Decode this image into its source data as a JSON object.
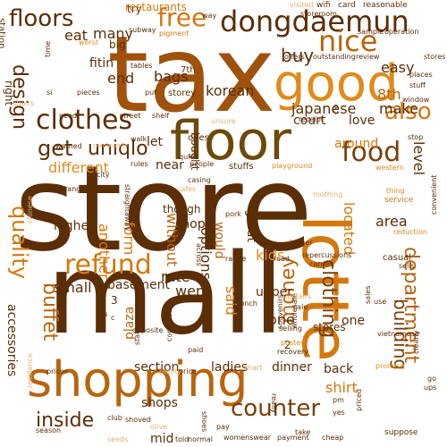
{
  "title": "Word cloud",
  "palette": [
    "#5c2e06",
    "#7a3f08",
    "#8b4a0a",
    "#a0520c",
    "#b8650e",
    "#d4780e",
    "#e08a1a",
    "#c8a060",
    "#e0b070",
    "#f0c890"
  ],
  "words": [
    {
      "text": "store",
      "color": "#5c2e06"
    },
    {
      "text": "mall",
      "color": "#5c2e06"
    },
    {
      "text": "tax",
      "color": "#a0520c"
    },
    {
      "text": "shopping",
      "color": "#b8650e"
    },
    {
      "text": "lotte",
      "color": "#d4780e"
    },
    {
      "text": "floor",
      "color": "#6b4a0a"
    },
    {
      "text": "good",
      "color": "#e08a1a"
    },
    {
      "text": "dongdaemun",
      "color": "#5c2e06"
    },
    {
      "text": "free",
      "color": "#d4780e"
    },
    {
      "text": "clothes",
      "color": "#5c2e06"
    },
    {
      "text": "nice",
      "color": "#b8650e"
    },
    {
      "text": "food",
      "color": "#7a3f08"
    },
    {
      "text": "refund",
      "color": "#d4780e"
    },
    {
      "text": "department",
      "color": "#b8650e"
    },
    {
      "text": "floors",
      "color": "#5c2e06"
    },
    {
      "text": "design",
      "color": "#5c2e06"
    },
    {
      "text": "quality",
      "color": "#d4780e"
    },
    {
      "text": "get",
      "color": "#5c2e06"
    },
    {
      "text": "uniqlo",
      "color": "#5c2e06"
    },
    {
      "text": "also",
      "color": "#d4780e"
    },
    {
      "text": "buffet",
      "color": "#b8650e"
    },
    {
      "text": "money",
      "color": "#b8650e"
    },
    {
      "text": "clothing",
      "color": "#7a3f08"
    },
    {
      "text": "counter",
      "color": "#7a3f08"
    },
    {
      "text": "inside",
      "color": "#5c2e06"
    },
    {
      "text": "building",
      "color": "#7a3f08"
    },
    {
      "text": "buy",
      "color": "#5c2e06"
    },
    {
      "text": "eat",
      "color": "#5c2e06"
    },
    {
      "text": "many",
      "color": "#5c2e06"
    },
    {
      "text": "korean",
      "color": "#5c2e06"
    },
    {
      "text": "japanese",
      "color": "#5c2e06"
    },
    {
      "text": "different",
      "color": "#e08a1a"
    },
    {
      "text": "another",
      "color": "#d4780e"
    },
    {
      "text": "form",
      "color": "#d4780e"
    },
    {
      "text": "without",
      "color": "#b8650e"
    },
    {
      "text": "options",
      "color": "#5c2e06"
    },
    {
      "text": "shop",
      "color": "#5c2e06"
    },
    {
      "text": "kids",
      "color": "#e08a1a"
    },
    {
      "text": "rate",
      "color": "#5c2e06"
    },
    {
      "text": "went",
      "color": "#5c2e06"
    },
    {
      "text": "said",
      "color": "#d4780e"
    },
    {
      "text": "one",
      "color": "#5c2e06"
    },
    {
      "text": "small",
      "color": "#5c2e06"
    },
    {
      "text": "basement",
      "color": "#5c2e06"
    },
    {
      "text": "section",
      "color": "#5c2e06"
    },
    {
      "text": "ladies",
      "color": "#5c2e06"
    },
    {
      "text": "dinner",
      "color": "#5c2e06"
    },
    {
      "text": "back",
      "color": "#5c2e06"
    },
    {
      "text": "shirt",
      "color": "#d4780e"
    },
    {
      "text": "shops",
      "color": "#5c2e06"
    },
    {
      "text": "mid",
      "color": "#5c2e06"
    },
    {
      "text": "accessories",
      "color": "#5c2e06"
    },
    {
      "text": "plaza",
      "color": "#b8650e"
    },
    {
      "text": "level",
      "color": "#5c2e06"
    },
    {
      "text": "area",
      "color": "#5c2e06"
    },
    {
      "text": "located",
      "color": "#d4780e"
    },
    {
      "text": "make",
      "color": "#5c2e06"
    },
    {
      "text": "8th",
      "color": "#b8650e"
    },
    {
      "text": "easy",
      "color": "#5c2e06"
    },
    {
      "text": "bags",
      "color": "#5c2e06"
    },
    {
      "text": "end",
      "color": "#5c2e06"
    },
    {
      "text": "fitin",
      "color": "#5c2e06"
    },
    {
      "text": "big",
      "color": "#5c2e06"
    },
    {
      "text": "try",
      "color": "#5c2e06"
    },
    {
      "text": "restaurants",
      "color": "#d4780e"
    },
    {
      "text": "station",
      "color": "#5c2e06"
    },
    {
      "text": "right",
      "color": "#5c2e06"
    },
    {
      "text": "let",
      "color": "#5c2e06"
    },
    {
      "text": "near",
      "color": "#5c2e06"
    },
    {
      "text": "great",
      "color": "#5c2e06"
    },
    {
      "text": "would",
      "color": "#b8650e"
    },
    {
      "text": "upper",
      "color": "#5c2e06"
    },
    {
      "text": "love",
      "color": "#5c2e06"
    },
    {
      "text": "around",
      "color": "#d4780e"
    },
    {
      "text": "court",
      "color": "#5c2e06"
    },
    {
      "text": "higher",
      "color": "#5c2e06"
    },
    {
      "text": "though",
      "color": "#5c2e06"
    },
    {
      "text": "bought",
      "color": "#5c2e06"
    },
    {
      "text": "ones",
      "color": "#5c2e06"
    },
    {
      "text": "stuffs",
      "color": "#5c2e06"
    },
    {
      "text": "storey",
      "color": "#5c2e06"
    },
    {
      "text": "7th",
      "color": "#5c2e06"
    },
    {
      "text": "stores",
      "color": "#5c2e06"
    },
    {
      "text": "one",
      "color": "#5c2e06"
    },
    {
      "text": "2",
      "color": "#5c2e06"
    },
    {
      "text": "3",
      "color": "#5c2e06"
    },
    {
      "text": "way",
      "color": "#5c2e06"
    },
    {
      "text": "wifi",
      "color": "#5c2e06"
    },
    {
      "text": "card",
      "color": "#5c2e06"
    },
    {
      "text": "reasonable",
      "color": "#5c2e06"
    },
    {
      "text": "visited",
      "color": "#e0b070"
    },
    {
      "text": "subway",
      "color": "#5c2e06"
    },
    {
      "text": "pigment",
      "color": "#d4780e"
    },
    {
      "text": "worst",
      "color": "#e08a1a"
    },
    {
      "text": "storeroom",
      "color": "#5c2e06"
    },
    {
      "text": "operation",
      "color": "#5c2e06"
    },
    {
      "text": "sample",
      "color": "#5c2e06"
    },
    {
      "text": "outstanding",
      "color": "#5c2e06"
    },
    {
      "text": "review",
      "color": "#5c2e06"
    },
    {
      "text": "offers",
      "color": "#5c2e06"
    },
    {
      "text": "tables",
      "color": "#5c2e06"
    },
    {
      "text": "pieces",
      "color": "#5c2e06"
    },
    {
      "text": "need",
      "color": "#5c2e06"
    },
    {
      "text": "street",
      "color": "#5c2e06"
    },
    {
      "text": "shelf",
      "color": "#5c2e06"
    },
    {
      "text": "receipt",
      "color": "#5c2e06"
    },
    {
      "text": "unsure",
      "color": "#e0b070"
    },
    {
      "text": "put",
      "color": "#5c2e06"
    },
    {
      "text": "walk",
      "color": "#5c2e06"
    },
    {
      "text": "rules",
      "color": "#5c2e06"
    },
    {
      "text": "city",
      "color": "#5c2e06"
    },
    {
      "text": "playground",
      "color": "#e08a1a"
    },
    {
      "text": "people",
      "color": "#5c2e06"
    },
    {
      "text": "western",
      "color": "#e08a1a"
    },
    {
      "text": "casing",
      "color": "#5c2e06"
    },
    {
      "text": "warned",
      "color": "#5c2e06"
    },
    {
      "text": "ranges",
      "color": "#5c2e06"
    },
    {
      "text": "straightaway",
      "color": "#5c2e06"
    },
    {
      "text": "cafes",
      "color": "#e0b070"
    },
    {
      "text": "thing",
      "color": "#e08a1a"
    },
    {
      "text": "service",
      "color": "#d4780e"
    },
    {
      "text": "reduction",
      "color": "#e08a1a"
    },
    {
      "text": "convenient",
      "color": "#5c2e06"
    },
    {
      "text": "casual",
      "color": "#5c2e06"
    },
    {
      "text": "sells",
      "color": "#5c2e06"
    },
    {
      "text": "longer",
      "color": "#5c2e06"
    },
    {
      "text": "repercussions",
      "color": "#5c2e06"
    },
    {
      "text": "carries",
      "color": "#5c2e06"
    },
    {
      "text": "lunch",
      "color": "#5c2e06"
    },
    {
      "text": "across",
      "color": "#5c2e06"
    },
    {
      "text": "range",
      "color": "#5c2e06"
    },
    {
      "text": "road",
      "color": "#5c2e06"
    },
    {
      "text": "souvenirs",
      "color": "#5c2e06"
    },
    {
      "text": "wholesale",
      "color": "#5c2e06"
    },
    {
      "text": "selling",
      "color": "#5c2e06"
    },
    {
      "text": "posted",
      "color": "#e08a1a"
    },
    {
      "text": "recovery",
      "color": "#5c2e06"
    },
    {
      "text": "vietnamese",
      "color": "#5c2e06"
    },
    {
      "text": "promise",
      "color": "#e08a1a"
    },
    {
      "text": "clearly",
      "color": "#5c2e06"
    },
    {
      "text": "suppose",
      "color": "#5c2e06"
    },
    {
      "text": "opposite",
      "color": "#5c2e06"
    },
    {
      "text": "stationary",
      "color": "#5c2e06"
    },
    {
      "text": "comprised",
      "color": "#5c2e06"
    },
    {
      "text": "paid",
      "color": "#5c2e06"
    },
    {
      "text": "prices",
      "color": "#5c2e06"
    },
    {
      "text": "price",
      "color": "#5c2e06"
    },
    {
      "text": "plenty",
      "color": "#e0b070"
    },
    {
      "text": "shoes",
      "color": "#5c2e06"
    },
    {
      "text": "smart",
      "color": "#e0b070"
    },
    {
      "text": "really",
      "color": "#5c2e06"
    },
    {
      "text": "club",
      "color": "#5c2e06"
    },
    {
      "text": "shoved",
      "color": "#5c2e06"
    },
    {
      "text": "season",
      "color": "#5c2e06"
    },
    {
      "text": "olive",
      "color": "#e0b070"
    },
    {
      "text": "pay",
      "color": "#5c2e06"
    },
    {
      "text": "womenswear",
      "color": "#5c2e06"
    },
    {
      "text": "payment",
      "color": "#5c2e06"
    },
    {
      "text": "normal",
      "color": "#5c2e06"
    },
    {
      "text": "told",
      "color": "#5c2e06"
    },
    {
      "text": "cheap",
      "color": "#5c2e06"
    },
    {
      "text": "seeds",
      "color": "#e0b070"
    },
    {
      "text": "residence",
      "color": "#e0b070"
    },
    {
      "text": "chinese",
      "color": "#e0b070"
    },
    {
      "text": "yes",
      "color": "#5c2e06"
    },
    {
      "text": "sales",
      "color": "#5c2e06"
    },
    {
      "text": "use",
      "color": "#5c2e06"
    },
    {
      "text": "ups",
      "color": "#5c2e06"
    },
    {
      "text": "go",
      "color": "#5c2e06"
    },
    {
      "text": "take",
      "color": "#5c2e06"
    },
    {
      "text": "priced",
      "color": "#5c2e06"
    },
    {
      "text": "stop",
      "color": "#5c2e06"
    },
    {
      "text": "quiet",
      "color": "#5c2e06"
    },
    {
      "text": "time",
      "color": "#5c2e06"
    },
    {
      "text": "chairs",
      "color": "#e0b070"
    },
    {
      "text": "community",
      "color": "#e0b070"
    },
    {
      "text": "window",
      "color": "#5c2e06"
    },
    {
      "text": "places",
      "color": "#5c2e06"
    },
    {
      "text": "stuff",
      "color": "#5c2e06"
    },
    {
      "text": "stores",
      "color": "#5c2e06"
    },
    {
      "text": "mothing",
      "color": "#e0b070"
    },
    {
      "text": "upstairs",
      "color": "#e0b070"
    },
    {
      "text": "sale",
      "color": "#5c2e06"
    },
    {
      "text": "pork",
      "color": "#5c2e06"
    },
    {
      "text": "clo",
      "color": "#5c2e06"
    },
    {
      "text": "si",
      "color": "#5c2e06"
    },
    {
      "text": "pm",
      "color": "#5c2e06"
    },
    {
      "text": "pu",
      "color": "#5c2e06"
    },
    {
      "text": "c",
      "color": "#5c2e06"
    }
  ]
}
